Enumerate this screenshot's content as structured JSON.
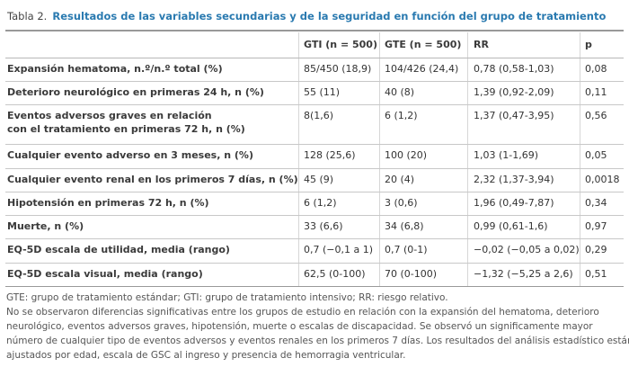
{
  "title": {
    "number": "Tabla 2.",
    "text": "Resultados de las variables secundarias y de la seguridad en función del grupo de tratamiento"
  },
  "table": {
    "header": [
      "GTI (n = 500)",
      "GTE (n = 500)",
      "RR",
      "p"
    ],
    "rows": [
      {
        "label": [
          "Expansión hematoma, n.º/n.º total (%)"
        ],
        "cells": [
          "85/450 (18,9)",
          "104/426 (24,4)",
          "0,78 (0,58-1,03)",
          "0,08"
        ]
      },
      {
        "label": [
          "Deterioro neurológico en primeras 24 h, n (%)"
        ],
        "cells": [
          "55 (11)",
          "40 (8)",
          "1,39 (0,92-2,09)",
          "0,11"
        ]
      },
      {
        "label": [
          "Eventos adversos graves en relación",
          "con el tratamiento en primeras 72 h, n (%)"
        ],
        "cells": [
          "8(1,6)",
          "6 (1,2)",
          "1,37 (0,47-3,95)",
          "0,56"
        ]
      },
      {
        "label": [
          "Cualquier evento adverso en 3 meses, n (%)"
        ],
        "cells": [
          "128 (25,6)",
          "100 (20)",
          "1,03 (1-1,69)",
          "0,05"
        ]
      },
      {
        "label": [
          "Cualquier evento renal en los primeros 7 días, n (%)"
        ],
        "cells": [
          "45 (9)",
          "20 (4)",
          "2,32 (1,37-3,94)",
          "0,0018"
        ]
      },
      {
        "label": [
          "Hipotensión en primeras 72 h, n (%)"
        ],
        "cells": [
          "6 (1,2)",
          "3 (0,6)",
          "1,96 (0,49-7,87)",
          "0,34"
        ]
      },
      {
        "label": [
          "Muerte, n (%)"
        ],
        "cells": [
          "33 (6,6)",
          "34 (6,8)",
          "0,99 (0,61-1,6)",
          "0,97"
        ]
      },
      {
        "label": [
          "EQ-5D escala de utilidad, media (rango)"
        ],
        "cells": [
          "0,7 (−0,1 a 1)",
          "0,7 (0-1)",
          "−0,02 (−0,05 a 0,02)",
          "0,29"
        ]
      },
      {
        "label": [
          "EQ-5D escala visual, media (rango)"
        ],
        "cells": [
          "62,5 (0-100)",
          "70 (0-100)",
          "−1,32 (−5,25 a 2,6)",
          "0,51"
        ]
      }
    ]
  },
  "notes": [
    "GTE: grupo de tratamiento estándar; GTI: grupo de tratamiento intensivo; RR: riesgo relativo.",
    "No se observaron diferencias significativas entre los grupos de estudio en relación con la expansión del hematoma, deterioro",
    "neurológico, eventos adversos graves, hipotensión, muerte o escalas de discapacidad. Se observó un significamente mayor",
    "número de cualquier tipo de eventos adversos y eventos renales en los primeros 7 días. Los resultados del análisis estadístico están",
    "ajustados por edad, escala de GSC al ingreso y presencia de hemorragia ventricular."
  ]
}
